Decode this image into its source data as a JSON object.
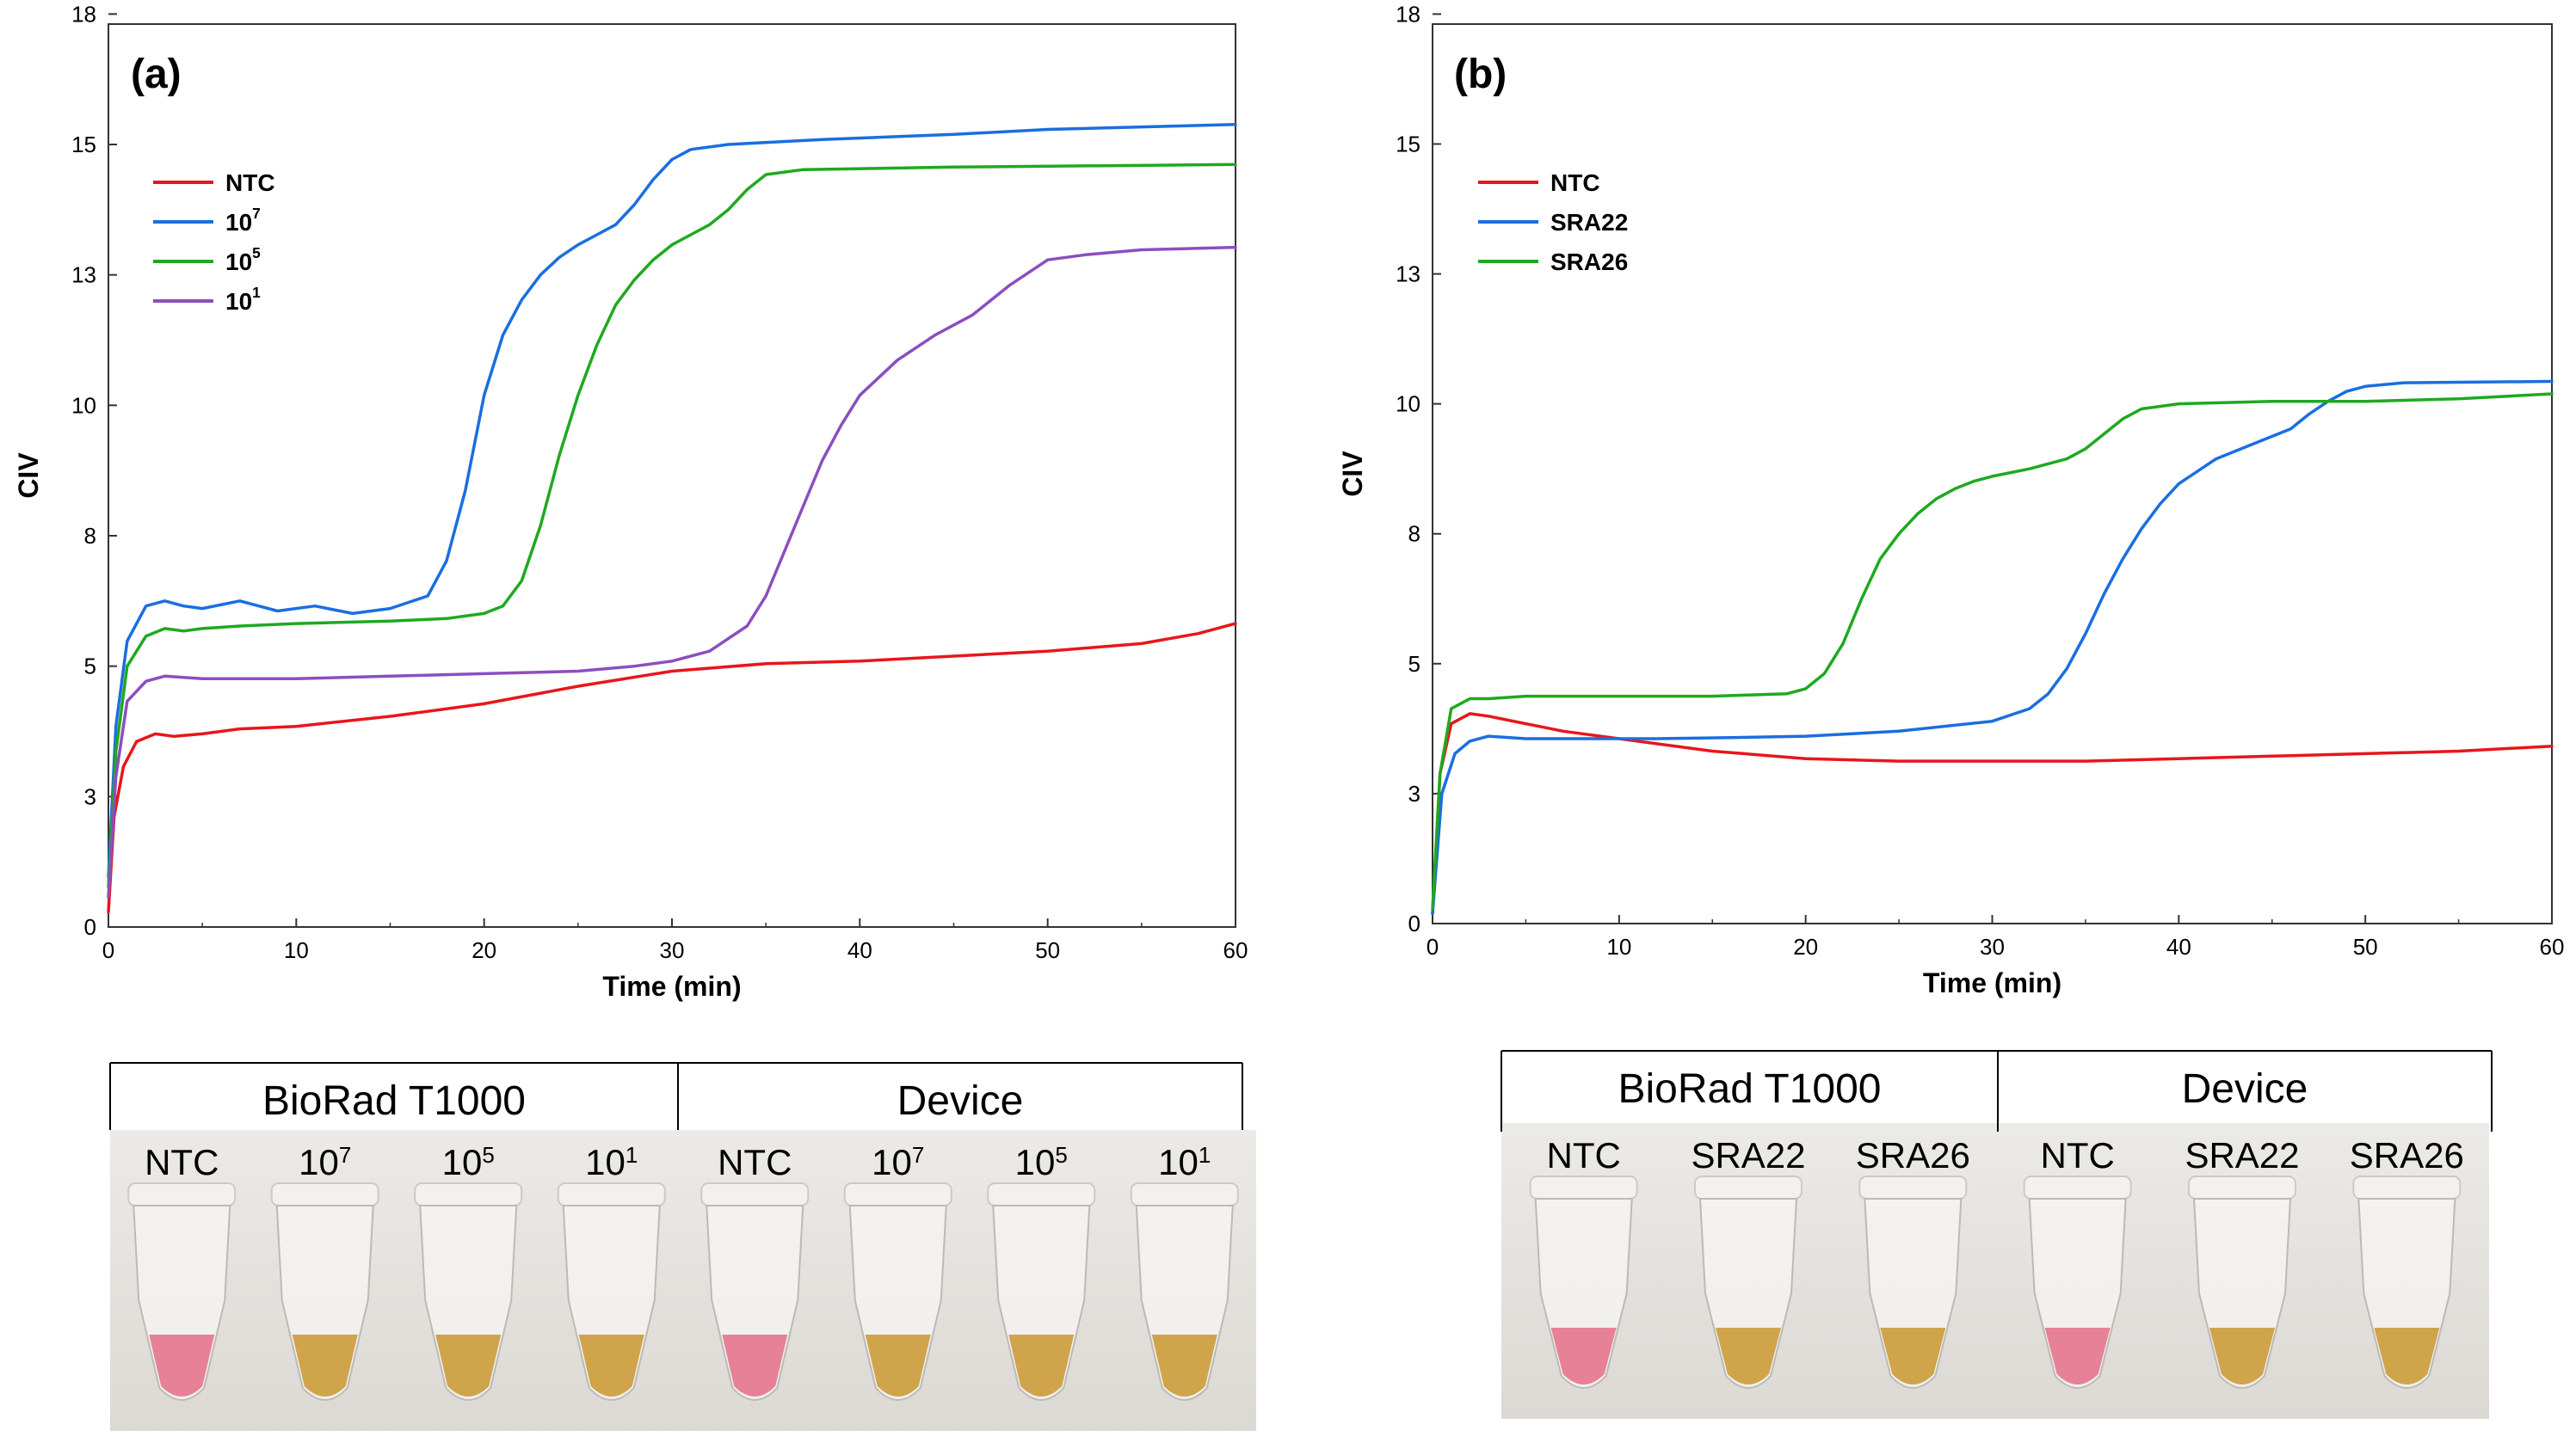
{
  "chart_data": [
    {
      "type": "line",
      "panel_label": "(a)",
      "xlabel": "Time (min)",
      "ylabel": "CIV",
      "xlim": [
        0,
        60
      ],
      "ylim": [
        0,
        18
      ],
      "xticks": [
        "0",
        "10",
        "20",
        "30",
        "40",
        "50",
        "60"
      ],
      "yticks": [
        "0",
        "3",
        "5",
        "8",
        "10",
        "13",
        "15",
        "18"
      ],
      "ytick_values": [
        0,
        2.6,
        5.2,
        7.8,
        10.4,
        13.0,
        15.6,
        18.2
      ],
      "legend_position": "top-left",
      "series": [
        {
          "name": "NTC",
          "legend_base": "NTC",
          "legend_sup": "",
          "color": "#e8161b",
          "points": [
            [
              0,
              0.3
            ],
            [
              0.3,
              2.2
            ],
            [
              0.8,
              3.2
            ],
            [
              1.5,
              3.7
            ],
            [
              2.5,
              3.85
            ],
            [
              3.5,
              3.8
            ],
            [
              5,
              3.85
            ],
            [
              7,
              3.95
            ],
            [
              10,
              4.0
            ],
            [
              15,
              4.2
            ],
            [
              20,
              4.45
            ],
            [
              25,
              4.8
            ],
            [
              30,
              5.1
            ],
            [
              35,
              5.25
            ],
            [
              40,
              5.3
            ],
            [
              45,
              5.4
            ],
            [
              50,
              5.5
            ],
            [
              55,
              5.65
            ],
            [
              58,
              5.85
            ],
            [
              60,
              6.05
            ]
          ]
        },
        {
          "name": "10^7",
          "legend_base": "10",
          "legend_sup": "7",
          "color": "#1a6ee0",
          "points": [
            [
              0,
              1.0
            ],
            [
              0.4,
              4.0
            ],
            [
              1,
              5.7
            ],
            [
              2,
              6.4
            ],
            [
              3,
              6.5
            ],
            [
              4,
              6.4
            ],
            [
              5,
              6.35
            ],
            [
              7,
              6.5
            ],
            [
              9,
              6.3
            ],
            [
              11,
              6.4
            ],
            [
              13,
              6.25
            ],
            [
              15,
              6.35
            ],
            [
              17,
              6.6
            ],
            [
              18,
              7.3
            ],
            [
              19,
              8.7
            ],
            [
              20,
              10.6
            ],
            [
              21,
              11.8
            ],
            [
              22,
              12.5
            ],
            [
              23,
              13.0
            ],
            [
              24,
              13.35
            ],
            [
              25,
              13.6
            ],
            [
              26,
              13.8
            ],
            [
              27,
              14.0
            ],
            [
              28,
              14.4
            ],
            [
              29,
              14.9
            ],
            [
              30,
              15.3
            ],
            [
              31,
              15.5
            ],
            [
              33,
              15.6
            ],
            [
              38,
              15.7
            ],
            [
              45,
              15.8
            ],
            [
              50,
              15.9
            ],
            [
              55,
              15.95
            ],
            [
              60,
              16.0
            ]
          ]
        },
        {
          "name": "10^5",
          "legend_base": "10",
          "legend_sup": "5",
          "color": "#1fa91f",
          "points": [
            [
              0,
              0.8
            ],
            [
              0.4,
              3.5
            ],
            [
              1,
              5.2
            ],
            [
              2,
              5.8
            ],
            [
              3,
              5.95
            ],
            [
              4,
              5.9
            ],
            [
              5,
              5.95
            ],
            [
              7,
              6.0
            ],
            [
              10,
              6.05
            ],
            [
              15,
              6.1
            ],
            [
              18,
              6.15
            ],
            [
              20,
              6.25
            ],
            [
              21,
              6.4
            ],
            [
              22,
              6.9
            ],
            [
              23,
              8.0
            ],
            [
              24,
              9.4
            ],
            [
              25,
              10.6
            ],
            [
              26,
              11.6
            ],
            [
              27,
              12.4
            ],
            [
              28,
              12.9
            ],
            [
              29,
              13.3
            ],
            [
              30,
              13.6
            ],
            [
              31,
              13.8
            ],
            [
              32,
              14.0
            ],
            [
              33,
              14.3
            ],
            [
              34,
              14.7
            ],
            [
              35,
              15.0
            ],
            [
              37,
              15.1
            ],
            [
              45,
              15.15
            ],
            [
              60,
              15.2
            ]
          ]
        },
        {
          "name": "10^1",
          "legend_base": "10",
          "legend_sup": "1",
          "color": "#8b4ec0",
          "points": [
            [
              0,
              0.6
            ],
            [
              0.4,
              3.0
            ],
            [
              1,
              4.5
            ],
            [
              2,
              4.9
            ],
            [
              3,
              5.0
            ],
            [
              5,
              4.95
            ],
            [
              7,
              4.95
            ],
            [
              10,
              4.95
            ],
            [
              15,
              5.0
            ],
            [
              20,
              5.05
            ],
            [
              25,
              5.1
            ],
            [
              28,
              5.2
            ],
            [
              30,
              5.3
            ],
            [
              32,
              5.5
            ],
            [
              34,
              6.0
            ],
            [
              35,
              6.6
            ],
            [
              36,
              7.5
            ],
            [
              37,
              8.4
            ],
            [
              38,
              9.3
            ],
            [
              39,
              10.0
            ],
            [
              40,
              10.6
            ],
            [
              42,
              11.3
            ],
            [
              44,
              11.8
            ],
            [
              46,
              12.2
            ],
            [
              48,
              12.8
            ],
            [
              50,
              13.3
            ],
            [
              52,
              13.4
            ],
            [
              55,
              13.5
            ],
            [
              60,
              13.55
            ]
          ]
        }
      ]
    },
    {
      "type": "line",
      "panel_label": "(b)",
      "xlabel": "Time (min)",
      "ylabel": "CIV",
      "xlim": [
        0,
        60
      ],
      "ylim": [
        0,
        18
      ],
      "xticks": [
        "0",
        "10",
        "20",
        "30",
        "40",
        "50",
        "60"
      ],
      "yticks": [
        "0",
        "3",
        "5",
        "8",
        "10",
        "13",
        "15",
        "18"
      ],
      "ytick_values": [
        0,
        2.6,
        5.2,
        7.8,
        10.4,
        13.0,
        15.6,
        18.2
      ],
      "legend_position": "top-left",
      "series": [
        {
          "name": "NTC",
          "legend_base": "NTC",
          "legend_sup": "",
          "color": "#e8161b",
          "points": [
            [
              0,
              0.2
            ],
            [
              0.4,
              3.0
            ],
            [
              1,
              4.0
            ],
            [
              2,
              4.2
            ],
            [
              3,
              4.15
            ],
            [
              5,
              4.0
            ],
            [
              7,
              3.85
            ],
            [
              10,
              3.7
            ],
            [
              15,
              3.45
            ],
            [
              20,
              3.3
            ],
            [
              25,
              3.25
            ],
            [
              30,
              3.25
            ],
            [
              35,
              3.25
            ],
            [
              40,
              3.3
            ],
            [
              45,
              3.35
            ],
            [
              50,
              3.4
            ],
            [
              55,
              3.45
            ],
            [
              60,
              3.55
            ]
          ]
        },
        {
          "name": "SRA22",
          "legend_base": "SRA22",
          "legend_sup": "",
          "color": "#1a6ee0",
          "points": [
            [
              0,
              0.2
            ],
            [
              0.5,
              2.6
            ],
            [
              1.2,
              3.4
            ],
            [
              2,
              3.65
            ],
            [
              3,
              3.75
            ],
            [
              5,
              3.7
            ],
            [
              8,
              3.7
            ],
            [
              12,
              3.7
            ],
            [
              16,
              3.72
            ],
            [
              20,
              3.75
            ],
            [
              25,
              3.85
            ],
            [
              30,
              4.05
            ],
            [
              32,
              4.3
            ],
            [
              33,
              4.6
            ],
            [
              34,
              5.1
            ],
            [
              35,
              5.8
            ],
            [
              36,
              6.6
            ],
            [
              37,
              7.3
            ],
            [
              38,
              7.9
            ],
            [
              39,
              8.4
            ],
            [
              40,
              8.8
            ],
            [
              42,
              9.3
            ],
            [
              44,
              9.6
            ],
            [
              46,
              9.9
            ],
            [
              47,
              10.2
            ],
            [
              48,
              10.45
            ],
            [
              49,
              10.65
            ],
            [
              50,
              10.75
            ],
            [
              52,
              10.82
            ],
            [
              60,
              10.85
            ]
          ]
        },
        {
          "name": "SRA26",
          "legend_base": "SRA26",
          "legend_sup": "",
          "color": "#1fa91f",
          "points": [
            [
              0,
              0.3
            ],
            [
              0.4,
              3.0
            ],
            [
              1,
              4.3
            ],
            [
              2,
              4.5
            ],
            [
              3,
              4.5
            ],
            [
              5,
              4.55
            ],
            [
              10,
              4.55
            ],
            [
              15,
              4.55
            ],
            [
              19,
              4.6
            ],
            [
              20,
              4.7
            ],
            [
              21,
              5.0
            ],
            [
              22,
              5.6
            ],
            [
              23,
              6.5
            ],
            [
              24,
              7.3
            ],
            [
              25,
              7.8
            ],
            [
              26,
              8.2
            ],
            [
              27,
              8.5
            ],
            [
              28,
              8.7
            ],
            [
              29,
              8.85
            ],
            [
              30,
              8.95
            ],
            [
              32,
              9.1
            ],
            [
              34,
              9.3
            ],
            [
              35,
              9.5
            ],
            [
              36,
              9.8
            ],
            [
              37,
              10.1
            ],
            [
              38,
              10.3
            ],
            [
              40,
              10.4
            ],
            [
              45,
              10.45
            ],
            [
              50,
              10.45
            ],
            [
              55,
              10.5
            ],
            [
              60,
              10.6
            ]
          ]
        }
      ]
    }
  ],
  "photos": {
    "a": {
      "groups": [
        "BioRad T1000",
        "Device"
      ],
      "tubes": [
        {
          "base": "NTC",
          "sup": "",
          "liquid": "pink"
        },
        {
          "base": "10",
          "sup": "7",
          "liquid": "yellow"
        },
        {
          "base": "10",
          "sup": "5",
          "liquid": "yellow"
        },
        {
          "base": "10",
          "sup": "1",
          "liquid": "yellow"
        },
        {
          "base": "NTC",
          "sup": "",
          "liquid": "pink"
        },
        {
          "base": "10",
          "sup": "7",
          "liquid": "yellow"
        },
        {
          "base": "10",
          "sup": "5",
          "liquid": "yellow"
        },
        {
          "base": "10",
          "sup": "1",
          "liquid": "yellow"
        }
      ]
    },
    "b": {
      "groups": [
        "BioRad T1000",
        "Device"
      ],
      "tubes": [
        {
          "base": "NTC",
          "sup": "",
          "liquid": "pink"
        },
        {
          "base": "SRA22",
          "sup": "",
          "liquid": "yellow"
        },
        {
          "base": "SRA26",
          "sup": "",
          "liquid": "yellow"
        },
        {
          "base": "NTC",
          "sup": "",
          "liquid": "pink"
        },
        {
          "base": "SRA22",
          "sup": "",
          "liquid": "yellow"
        },
        {
          "base": "SRA26",
          "sup": "",
          "liquid": "yellow"
        }
      ]
    }
  },
  "colors": {
    "pink": "#e56d88",
    "yellow": "#c9962e",
    "background": "#e8e6e3"
  }
}
